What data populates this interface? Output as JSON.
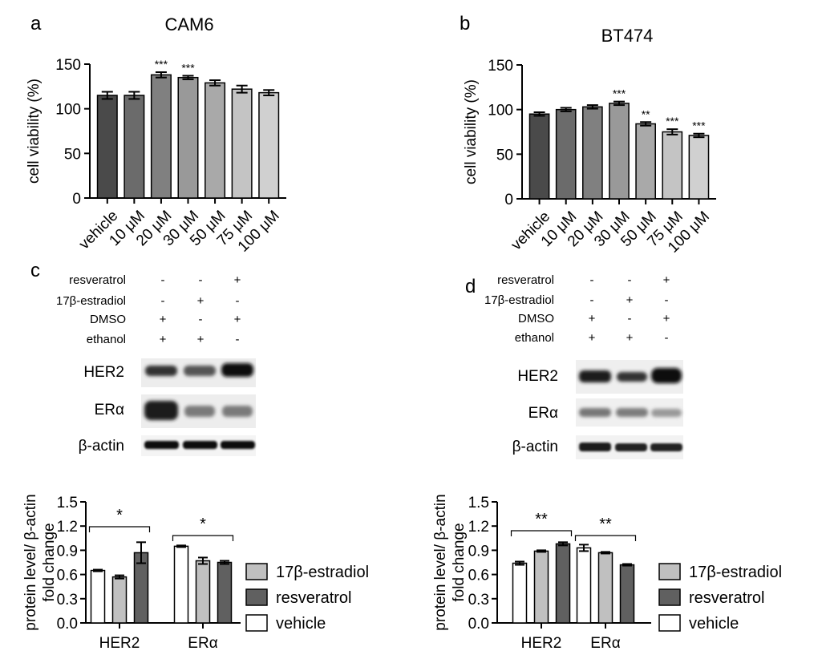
{
  "panel_letters": {
    "a": "a",
    "b": "b",
    "c": "c",
    "d": "d"
  },
  "colors": {
    "bar_shades": [
      "#4a4a4a",
      "#6b6b6b",
      "#808080",
      "#999999",
      "#a9a9a9",
      "#c4c4c4",
      "#d0d0d0"
    ],
    "estradiol": "#c0c0c0",
    "resveratrol": "#606060",
    "vehicle": "#ffffff",
    "stroke": "#000000"
  },
  "blots": {
    "treatment_rows": [
      {
        "label": "resveratrol",
        "marks": [
          "-",
          "-",
          "+"
        ]
      },
      {
        "label": "17β-estradiol",
        "marks": [
          "-",
          "+",
          "-"
        ]
      },
      {
        "label": "DMSO",
        "marks": [
          "+",
          "-",
          "+"
        ]
      },
      {
        "label": "ethanol",
        "marks": [
          "+",
          "+",
          "-"
        ]
      }
    ],
    "protein_labels": [
      "HER2",
      "ERα",
      "β-actin"
    ]
  },
  "chart_data": [
    {
      "id": "a",
      "type": "bar",
      "title": "CAM6",
      "xlabel": "",
      "ylabel": "cell viability (%)",
      "ylim": [
        0,
        150
      ],
      "yticks": [
        0,
        50,
        100,
        150
      ],
      "categories": [
        "vehicle",
        "10 μM",
        "20 μM",
        "30 μM",
        "50 μM",
        "75 μM",
        "100 μM"
      ],
      "values": [
        115,
        115,
        138,
        135,
        129,
        122,
        118
      ],
      "errors": [
        4,
        4,
        3,
        2,
        3,
        4,
        3
      ],
      "annotations": [
        "",
        "",
        "***",
        "***",
        "",
        "",
        ""
      ]
    },
    {
      "id": "b",
      "type": "bar",
      "title": "BT474",
      "xlabel": "",
      "ylabel": "cell viability (%)",
      "ylim": [
        0,
        150
      ],
      "yticks": [
        0,
        50,
        100,
        150
      ],
      "categories": [
        "vehicle",
        "10 μM",
        "20 μM",
        "30 μM",
        "50 μM",
        "75 μM",
        "100 μM"
      ],
      "values": [
        95,
        100,
        103,
        107,
        84,
        75,
        71
      ],
      "errors": [
        2,
        2,
        2,
        2,
        2,
        3,
        2
      ],
      "annotations": [
        "",
        "",
        "",
        "***",
        "**",
        "***",
        "***"
      ]
    },
    {
      "id": "c",
      "type": "bar",
      "xlabel": "",
      "ylabel": "protein level/ β-actin fold change",
      "ylim": [
        0,
        1.5
      ],
      "yticks": [
        "0.0",
        "0.3",
        "0.6",
        "0.9",
        "1.2",
        "1.5"
      ],
      "categories": [
        "HER2",
        "ERα"
      ],
      "series": [
        {
          "name": "vehicle",
          "values": [
            0.65,
            0.95
          ],
          "errors": [
            0.01,
            0.01
          ]
        },
        {
          "name": "17β-estradiol",
          "values": [
            0.57,
            0.77
          ],
          "errors": [
            0.02,
            0.04
          ]
        },
        {
          "name": "resveratrol",
          "values": [
            0.87,
            0.75
          ],
          "errors": [
            0.13,
            0.02
          ]
        }
      ],
      "significance": [
        "*",
        "*"
      ],
      "legend": [
        "17β-estradiol",
        "resveratrol",
        "vehicle"
      ]
    },
    {
      "id": "d",
      "type": "bar",
      "xlabel": "",
      "ylabel": "protein level/ β-actin fold change",
      "ylim": [
        0,
        1.5
      ],
      "yticks": [
        "0.0",
        "0.3",
        "0.6",
        "0.9",
        "1.2",
        "1.5"
      ],
      "categories": [
        "HER2",
        "ERα"
      ],
      "series": [
        {
          "name": "vehicle",
          "values": [
            0.74,
            0.93
          ],
          "errors": [
            0.02,
            0.04
          ]
        },
        {
          "name": "17β-estradiol",
          "values": [
            0.89,
            0.87
          ],
          "errors": [
            0.01,
            0.01
          ]
        },
        {
          "name": "resveratrol",
          "values": [
            0.98,
            0.72
          ],
          "errors": [
            0.02,
            0.01
          ]
        }
      ],
      "significance": [
        "**",
        "**"
      ],
      "legend": [
        "17β-estradiol",
        "resveratrol",
        "vehicle"
      ]
    }
  ]
}
